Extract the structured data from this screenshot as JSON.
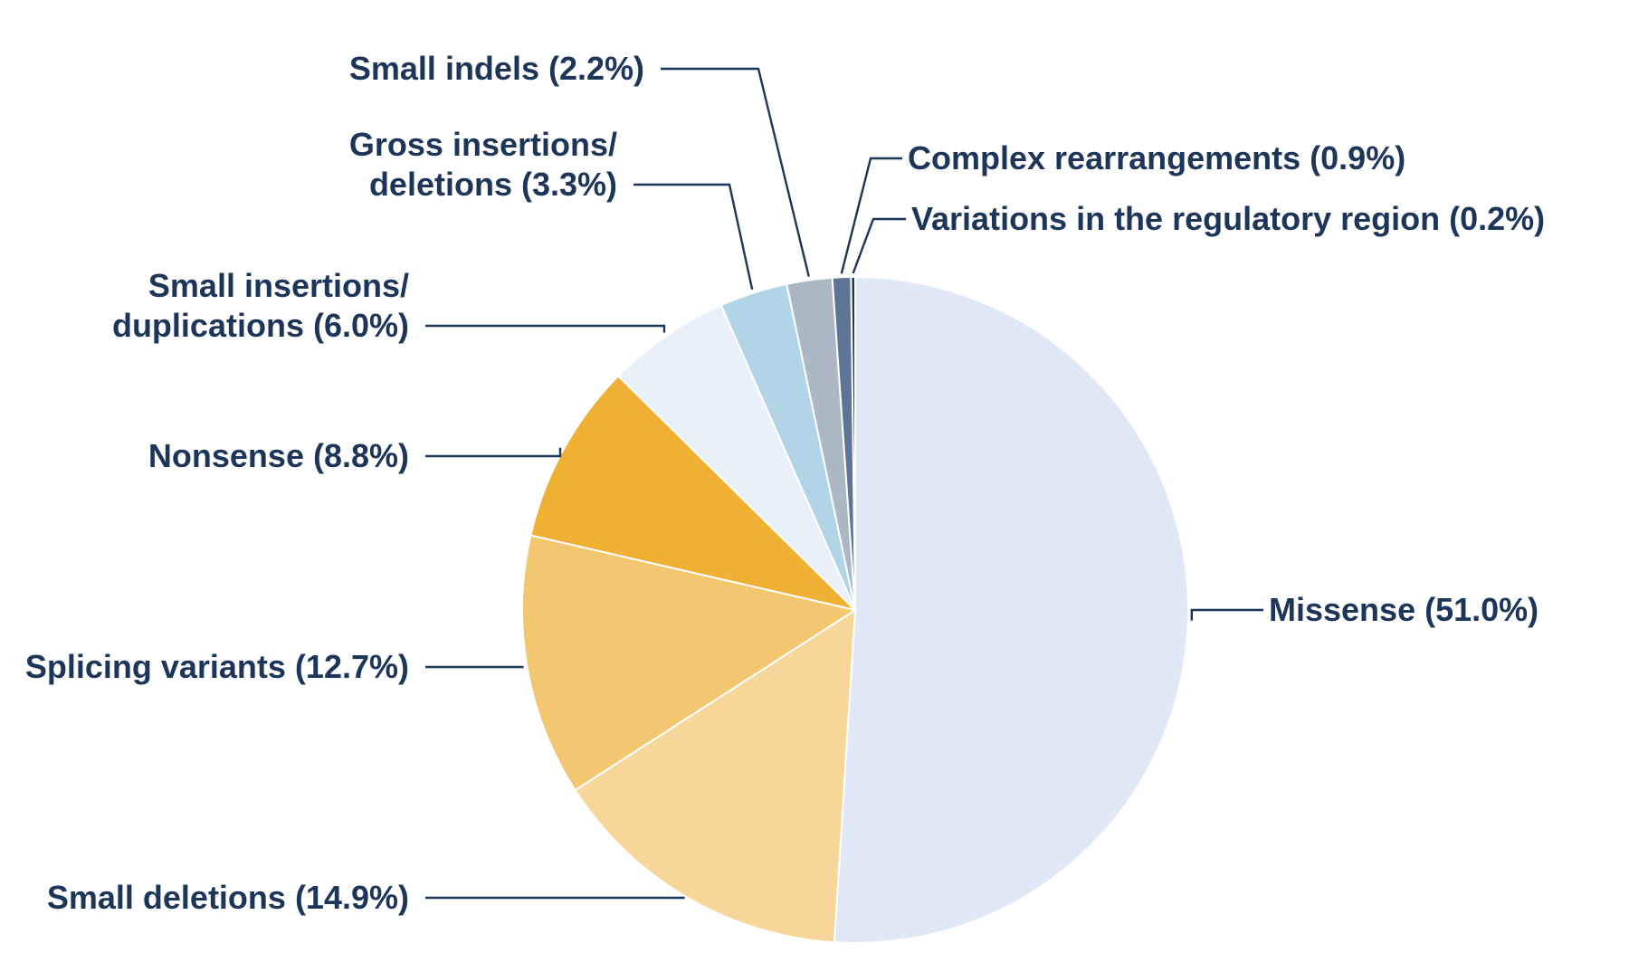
{
  "chart_data": {
    "type": "pie",
    "title": "",
    "start_angle_deg": 0,
    "direction": "clockwise",
    "slices": [
      {
        "label": "Missense (51.0%)",
        "name": "Missense",
        "value": 51.0,
        "color": "#e0e7f6"
      },
      {
        "label": "Small deletions (14.9%)",
        "name": "Small deletions",
        "value": 14.9,
        "color": "#f6d699"
      },
      {
        "label": "Splicing variants (12.7%)",
        "name": "Splicing variants",
        "value": 12.7,
        "color": "#f3c76f"
      },
      {
        "label": "Nonsense (8.8%)",
        "name": "Nonsense",
        "value": 8.8,
        "color": "#efb034"
      },
      {
        "label": [
          "Small insertions/",
          "duplications (6.0%)"
        ],
        "name": "Small insertions/duplications",
        "value": 6.0,
        "color": "#eaf0f9"
      },
      {
        "label": [
          "Gross insertions/",
          "deletions (3.3%)"
        ],
        "name": "Gross insertions/deletions",
        "value": 3.3,
        "color": "#b1d5e6"
      },
      {
        "label": "Small indels (2.2%)",
        "name": "Small indels",
        "value": 2.2,
        "color": "#acb7c5"
      },
      {
        "label": "Complex rearrangements (0.9%)",
        "name": "Complex rearrangements",
        "value": 0.9,
        "color": "#5e7595"
      },
      {
        "label": "Variations in the regulatory region (0.2%)",
        "name": "Variations in the regulatory region",
        "value": 0.2,
        "color": "#1d3559"
      }
    ],
    "label_color": "#1d3559",
    "leader_color": "#1d3559"
  }
}
